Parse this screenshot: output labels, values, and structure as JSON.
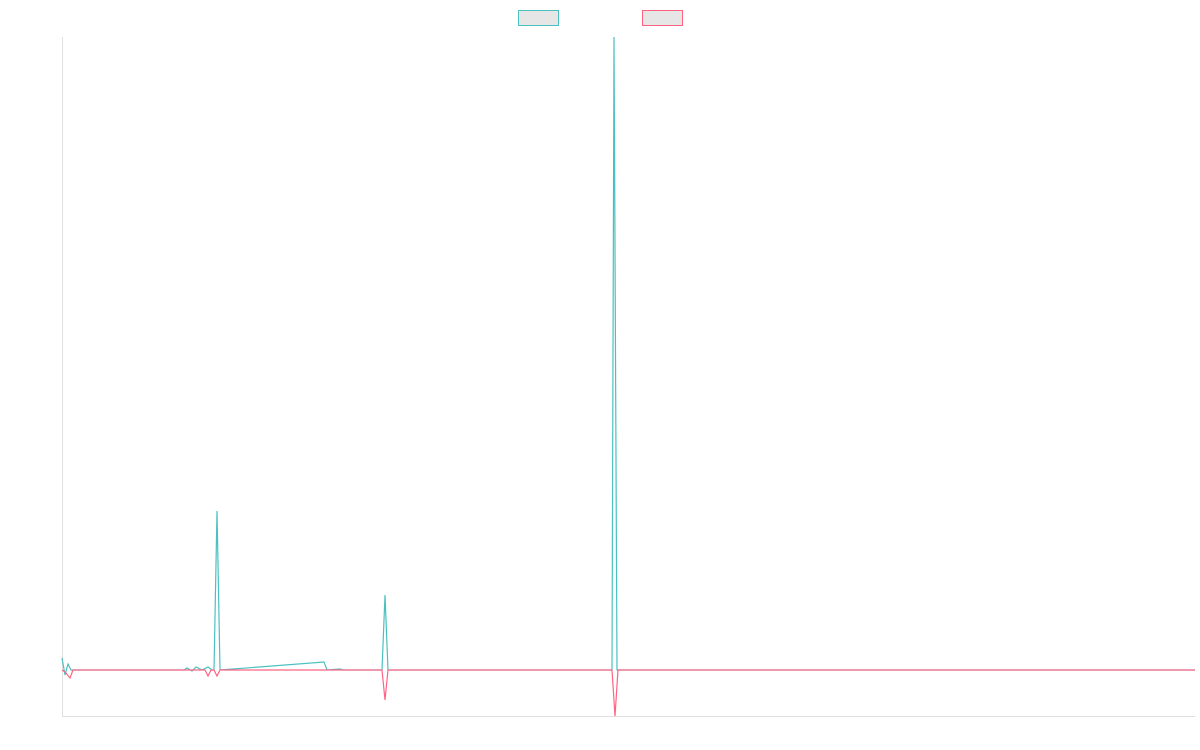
{
  "chart_data": {
    "type": "line",
    "xlim": [
      0,
      1133
    ],
    "ylim": [
      -46,
      633
    ],
    "series": [
      {
        "color": "#4bc0c0",
        "x": [
          0,
          3,
          6,
          9,
          122,
          125,
          130,
          134,
          140,
          146,
          150,
          152,
          155,
          158,
          262,
          265,
          278,
          281,
          320,
          323,
          326,
          550,
          552,
          555,
          1133
        ],
        "values": [
          12,
          -5,
          6,
          0,
          0,
          2,
          -1,
          3,
          0,
          3,
          0,
          0,
          159,
          0,
          8,
          0,
          1,
          0,
          0,
          75,
          0,
          0,
          633,
          0,
          0
        ]
      },
      {
        "color": "#ff6384",
        "x": [
          0,
          3,
          8,
          11,
          143,
          146,
          149,
          152,
          155,
          158,
          320,
          323,
          326,
          550,
          553,
          556,
          1133
        ],
        "values": [
          0,
          -2,
          -8,
          0,
          0,
          -6,
          0,
          0,
          -6,
          0,
          0,
          -30,
          0,
          0,
          -46,
          0,
          0
        ]
      }
    ]
  }
}
